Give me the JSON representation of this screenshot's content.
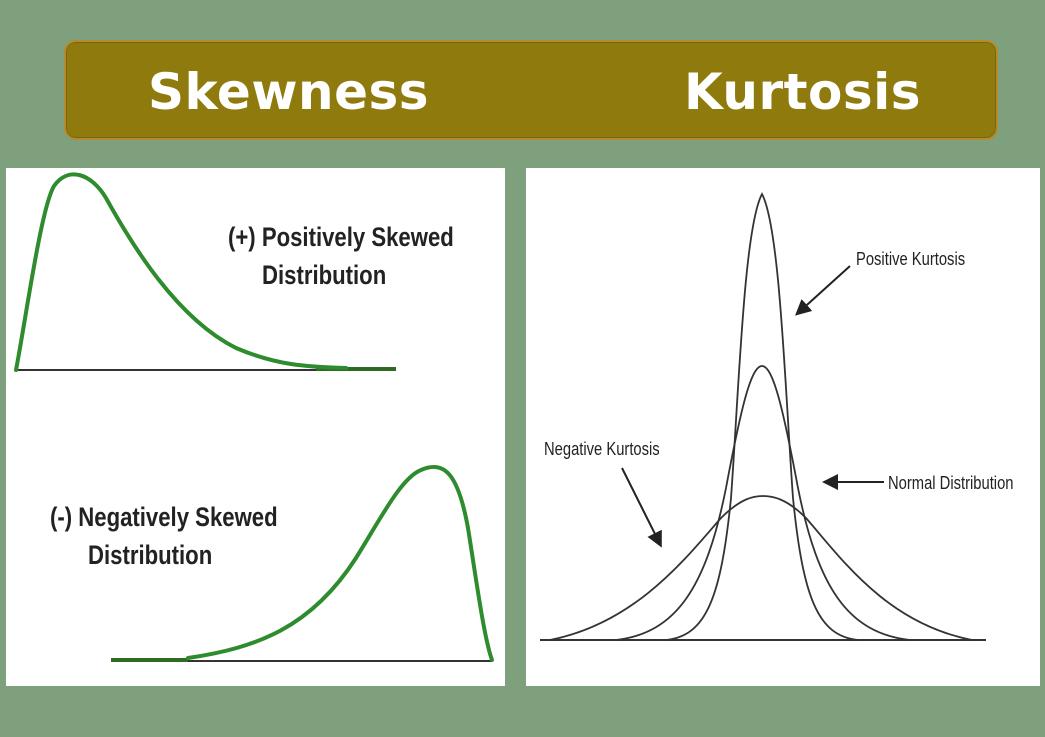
{
  "banner": {
    "skewness_title": "Skewness",
    "kurtosis_title": "Kurtosis",
    "color": "#8f7a0e"
  },
  "skewness": {
    "positive": {
      "line1": "(+) Positively Skewed",
      "line2": "Distribution"
    },
    "negative": {
      "line1": "(-) Negatively Skewed",
      "line2": "Distribution"
    },
    "curve_color": "#2e8b2e"
  },
  "kurtosis": {
    "positive_label": "Positive Kurtosis",
    "normal_label": "Normal Distribution",
    "negative_label": "Negative Kurtosis"
  }
}
